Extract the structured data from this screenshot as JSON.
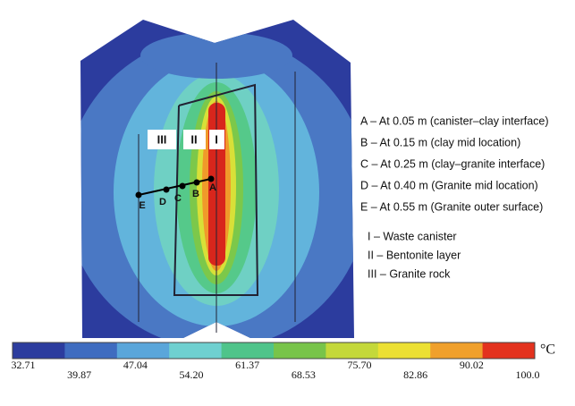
{
  "zone_labels": [
    "III",
    "II",
    "I"
  ],
  "point_labels": [
    "E",
    "D",
    "C",
    "B",
    "A"
  ],
  "legend": [
    "A – At 0.05 m (canister–clay interface)",
    "B – At 0.15 m (clay mid location)",
    "C – At 0.25 m (clay–granite interface)",
    "D – At 0.40 m (Granite mid location)",
    "E – At 0.55 m (Granite outer surface)"
  ],
  "zones": [
    "I – Waste canister",
    "II – Bentonite layer",
    "III – Granite rock"
  ],
  "colorbar": {
    "ticks": [
      "32.71",
      "39.87",
      "47.04",
      "54.20",
      "61.37",
      "68.53",
      "75.70",
      "82.86",
      "90.02",
      "100.0"
    ],
    "unit": "°C"
  }
}
